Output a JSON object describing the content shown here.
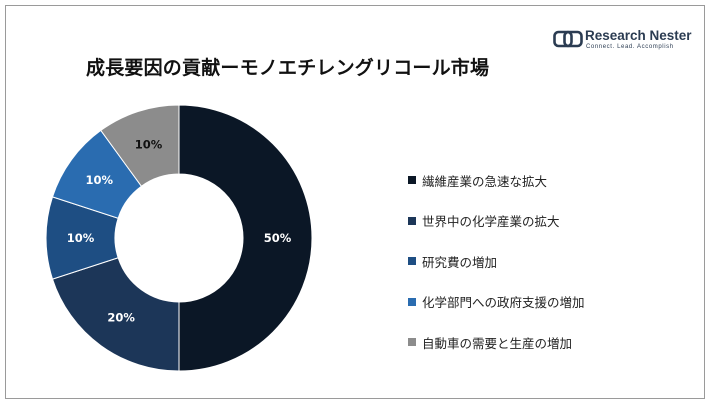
{
  "title": "成長要因の貢献ーモノエチレングリコール市場",
  "logo": {
    "name": "Research Nester",
    "tagline": "Connect. Lead. Accomplish"
  },
  "chart_data": {
    "type": "pie",
    "donut": true,
    "title": "成長要因の貢献ーモノエチレングリコール市場",
    "legend_position": "right",
    "slices": [
      {
        "label": "繊維産業の急速な拡大",
        "value": 50,
        "display": "50%",
        "color": "#0b1726",
        "label_color": "#ffffff"
      },
      {
        "label": "世界中の化学産業の拡大",
        "value": 20,
        "display": "20%",
        "color": "#1c3658",
        "label_color": "#ffffff"
      },
      {
        "label": "研究費の増加",
        "value": 10,
        "display": "10%",
        "color": "#1e4e83",
        "label_color": "#ffffff"
      },
      {
        "label": "化学部門への政府支援の増加",
        "value": 10,
        "display": "10%",
        "color": "#2a6cb0",
        "label_color": "#ffffff"
      },
      {
        "label": "自動車の需要と生産の増加",
        "value": 10,
        "display": "10%",
        "color": "#8c8c8c",
        "label_color": "#111111"
      }
    ]
  }
}
